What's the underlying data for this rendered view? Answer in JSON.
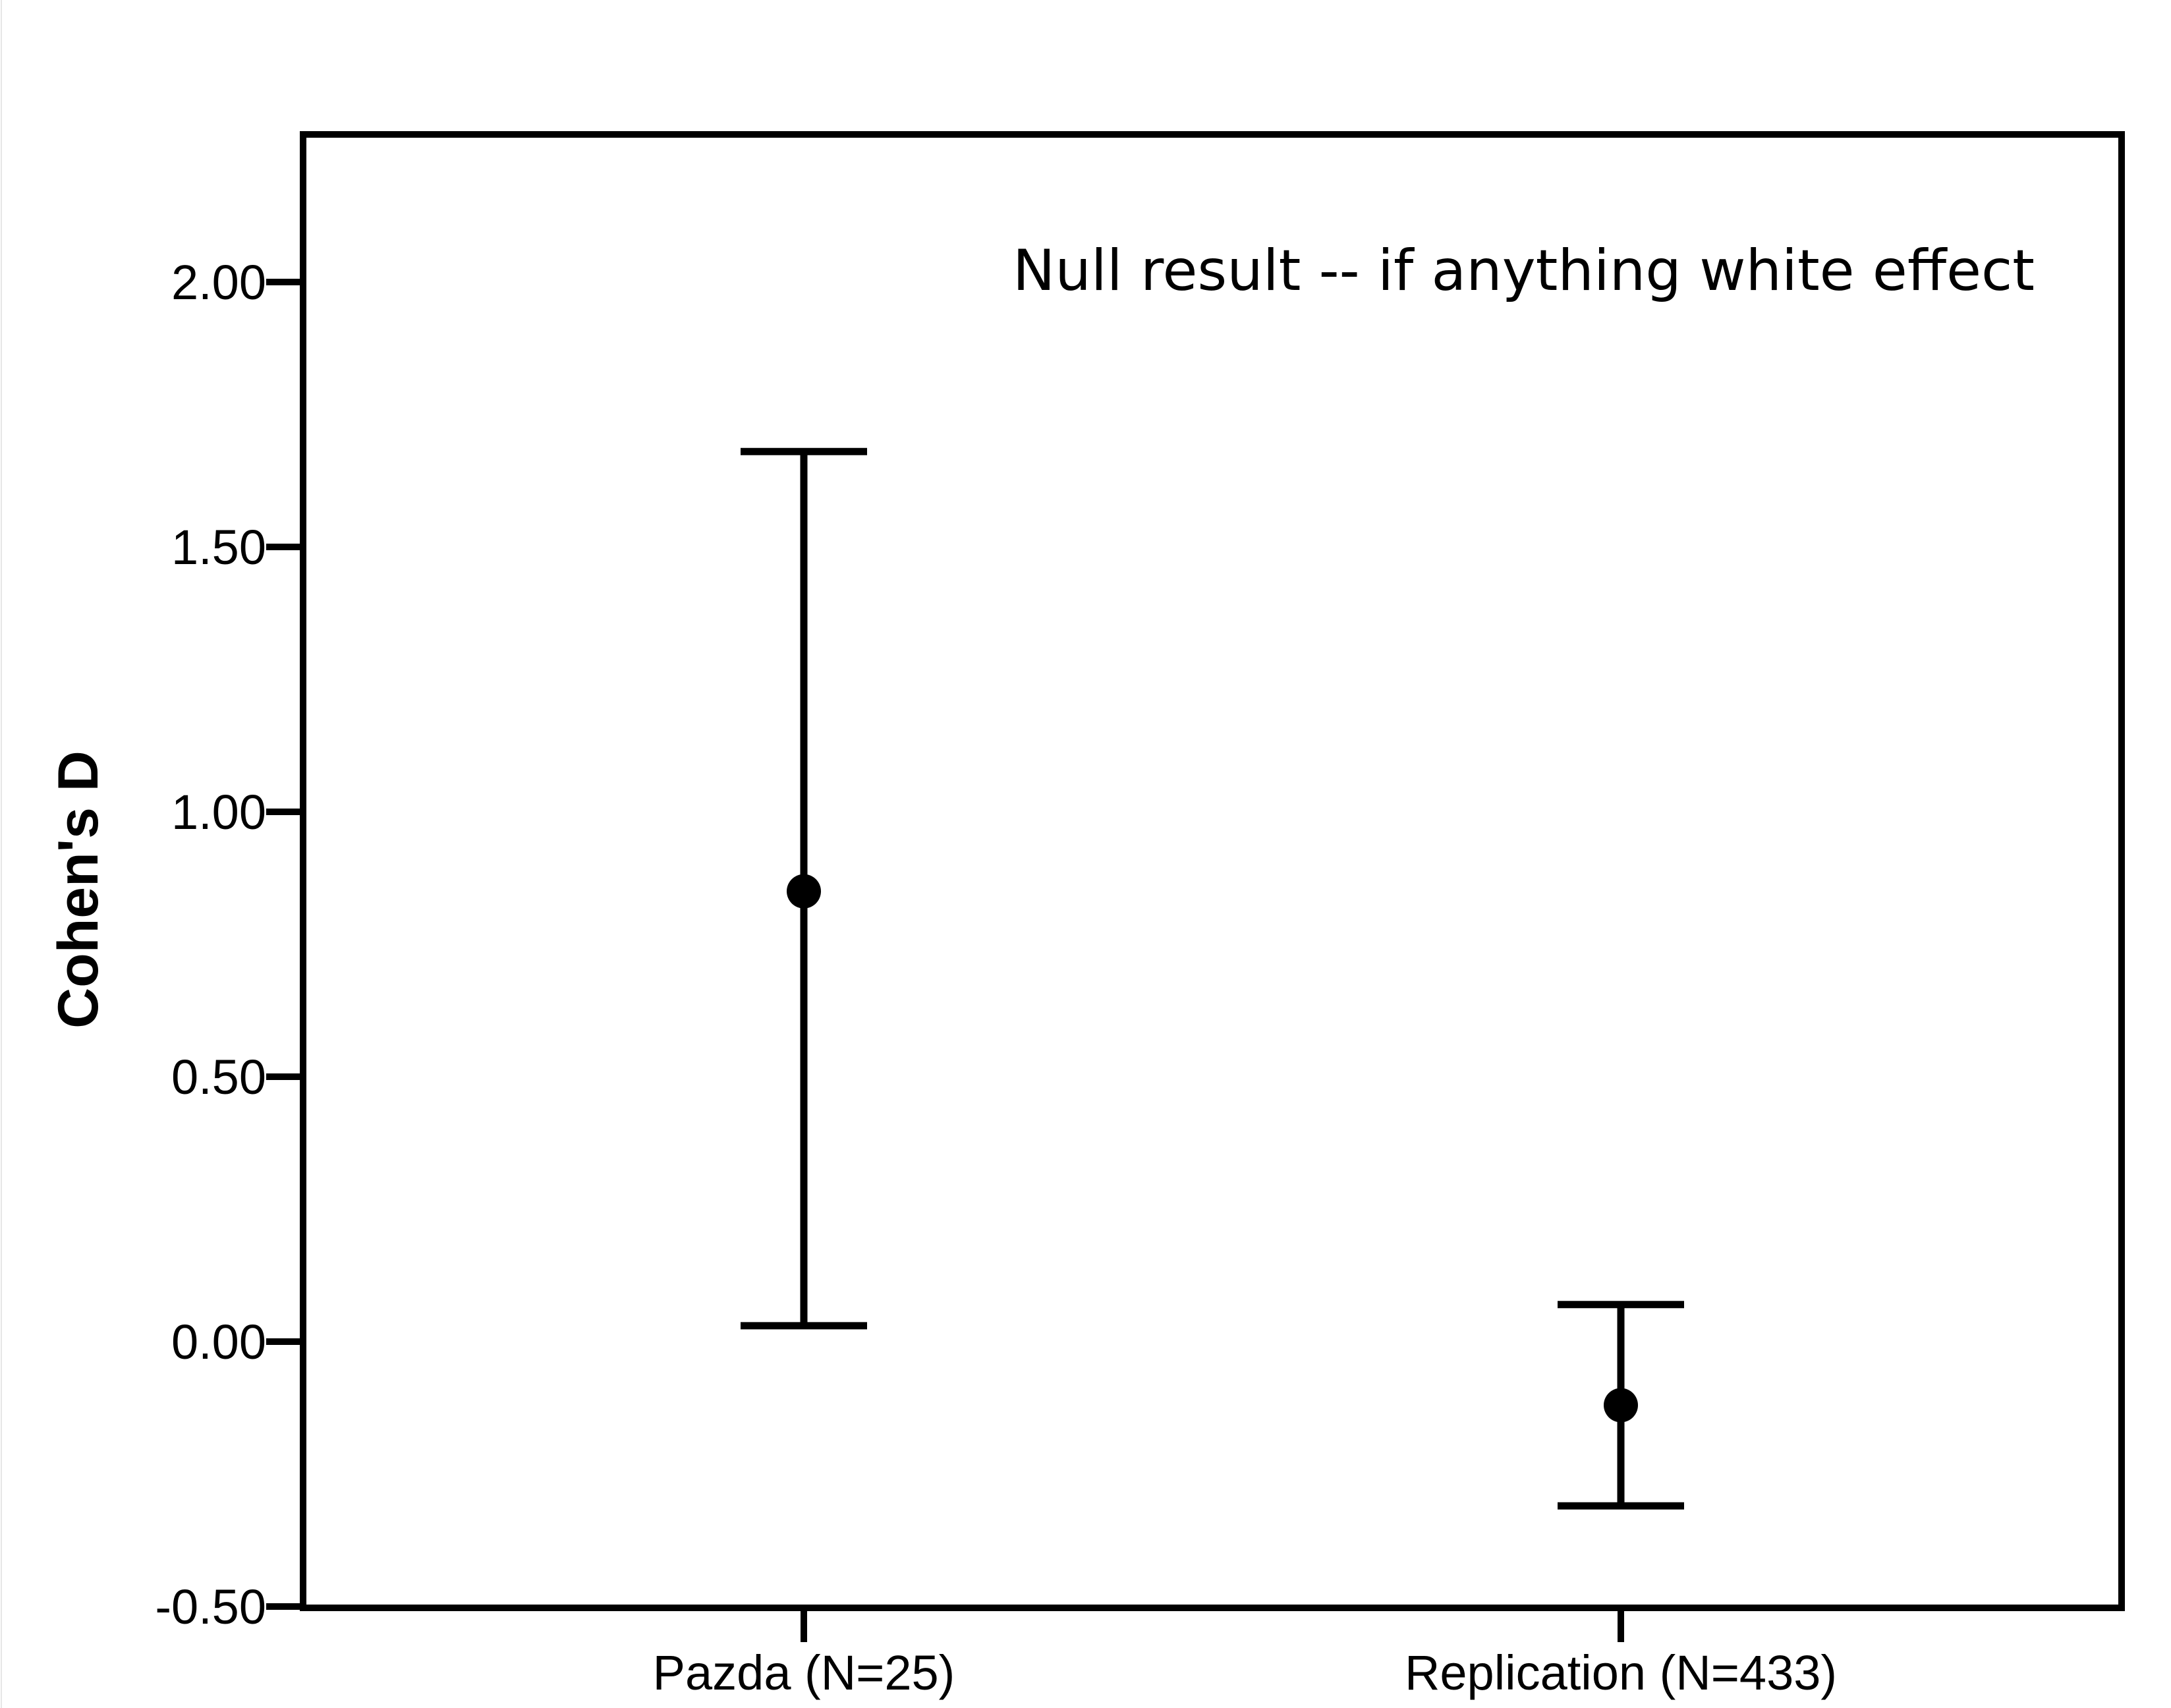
{
  "chart_data": {
    "type": "scatter",
    "title": "",
    "xlabel": "",
    "ylabel": "Cohen's D",
    "ylim": [
      -0.5,
      2.25
    ],
    "yticks": [
      "-0.50",
      "0.00",
      "0.50",
      "1.00",
      "1.50",
      "2.00"
    ],
    "ytick_values": [
      -0.5,
      0.0,
      0.5,
      1.0,
      1.5,
      2.0
    ],
    "categories": [
      "Pazda (N=25)",
      "Replication (N=433)"
    ],
    "points": [
      {
        "category": "Pazda (N=25)",
        "mean": 0.85,
        "ci_low": 0.03,
        "ci_high": 1.68
      },
      {
        "category": "Replication (N=433)",
        "mean": -0.12,
        "ci_low": -0.31,
        "ci_high": 0.07
      }
    ],
    "annotation": "Null result -- if anything white effect",
    "annotation_position": "top-right",
    "grid": false,
    "legend": "none",
    "colors": {
      "marks": "#000000",
      "background": "#ffffff"
    }
  }
}
